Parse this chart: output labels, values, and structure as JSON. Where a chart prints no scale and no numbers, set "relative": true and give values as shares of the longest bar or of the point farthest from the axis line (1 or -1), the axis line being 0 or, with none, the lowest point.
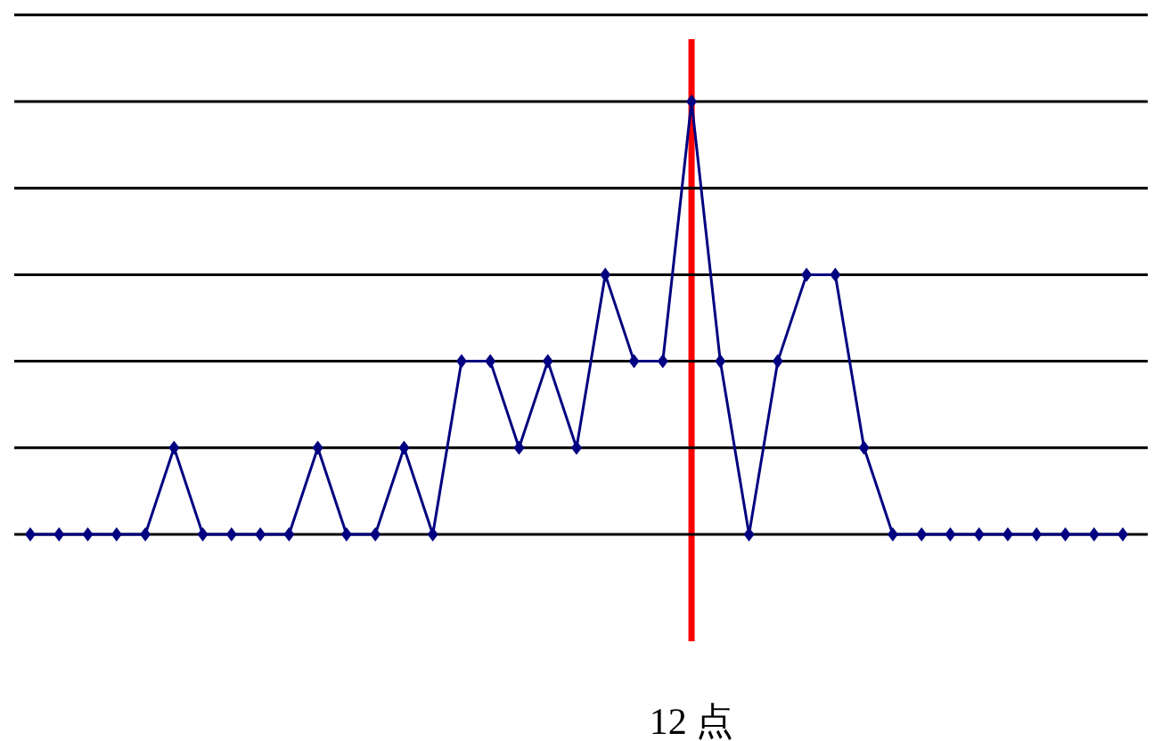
{
  "chart_data": {
    "type": "line",
    "relative": true,
    "categories": [
      null,
      null,
      null,
      null,
      null,
      null,
      null,
      null,
      null,
      null,
      null,
      null,
      null,
      null,
      null,
      null,
      null,
      null,
      null,
      null,
      null,
      null,
      null,
      null,
      null,
      null,
      null,
      null,
      null,
      null,
      null,
      null,
      null,
      null,
      null,
      null,
      null,
      null,
      null
    ],
    "series": [
      {
        "color": "#000080",
        "values": [
          0,
          0,
          0,
          0,
          0,
          0.2,
          0,
          0,
          0,
          0,
          0.2,
          0,
          0,
          0.2,
          0,
          0.4,
          0.4,
          0.2,
          0.4,
          0.2,
          0.6,
          0.4,
          0.4,
          1,
          0.4,
          0,
          0.4,
          0.6,
          0.6,
          0.2,
          0,
          0,
          0,
          0,
          0,
          0,
          0,
          0,
          0
        ]
      }
    ],
    "annotations": [
      "12 点"
    ],
    "grid": "y",
    "marker": "diamond",
    "line_style": "solid"
  }
}
